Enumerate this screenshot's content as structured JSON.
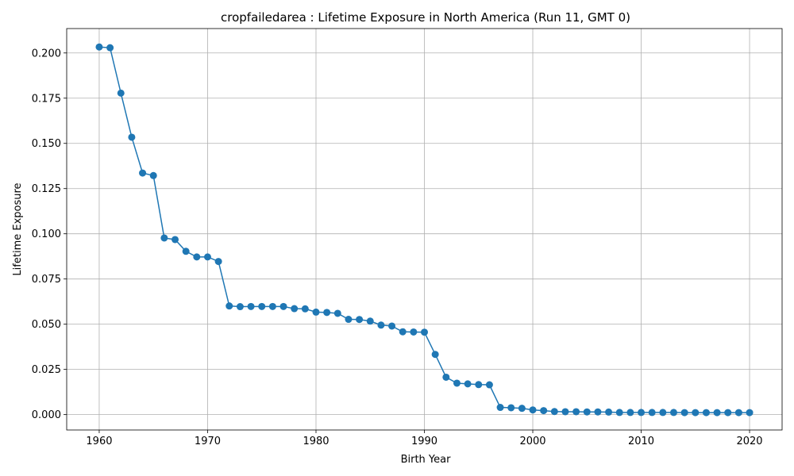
{
  "chart_data": {
    "type": "line",
    "title": "cropfailedarea : Lifetime Exposure in North America (Run 11, GMT 0)",
    "xlabel": "Birth Year",
    "ylabel": "Lifetime Exposure",
    "xlim": [
      1957,
      2023
    ],
    "ylim": [
      -0.0085,
      0.2135
    ],
    "xticks": [
      1960,
      1970,
      1980,
      1990,
      2000,
      2010,
      2020
    ],
    "yticks": [
      "0.000",
      "0.025",
      "0.050",
      "0.075",
      "0.100",
      "0.125",
      "0.150",
      "0.175",
      "0.200"
    ],
    "grid": true,
    "color": "#1f77b4",
    "marker": "circle",
    "x": [
      1960,
      1961,
      1962,
      1963,
      1964,
      1965,
      1966,
      1967,
      1968,
      1969,
      1970,
      1971,
      1972,
      1973,
      1974,
      1975,
      1976,
      1977,
      1978,
      1979,
      1980,
      1981,
      1982,
      1983,
      1984,
      1985,
      1986,
      1987,
      1988,
      1989,
      1990,
      1991,
      1992,
      1993,
      1994,
      1995,
      1996,
      1997,
      1998,
      1999,
      2000,
      2001,
      2002,
      2003,
      2004,
      2005,
      2006,
      2007,
      2008,
      2009,
      2010,
      2011,
      2012,
      2013,
      2014,
      2015,
      2016,
      2017,
      2018,
      2019,
      2020
    ],
    "y": [
      0.2033,
      0.2029,
      0.1778,
      0.1534,
      0.1336,
      0.1322,
      0.0977,
      0.0968,
      0.0903,
      0.0872,
      0.0872,
      0.0847,
      0.0601,
      0.0597,
      0.0598,
      0.0598,
      0.0598,
      0.0598,
      0.0586,
      0.0585,
      0.0567,
      0.0565,
      0.056,
      0.0527,
      0.0526,
      0.0517,
      0.0495,
      0.049,
      0.0458,
      0.0457,
      0.0456,
      0.0333,
      0.0207,
      0.0174,
      0.017,
      0.0166,
      0.0165,
      0.004,
      0.0038,
      0.0035,
      0.0026,
      0.0022,
      0.0017,
      0.0016,
      0.0016,
      0.0015,
      0.0015,
      0.0014,
      0.0012,
      0.0012,
      0.0012,
      0.0012,
      0.0012,
      0.0012,
      0.0011,
      0.0011,
      0.0011,
      0.0011,
      0.0011,
      0.0011,
      0.0011
    ]
  }
}
